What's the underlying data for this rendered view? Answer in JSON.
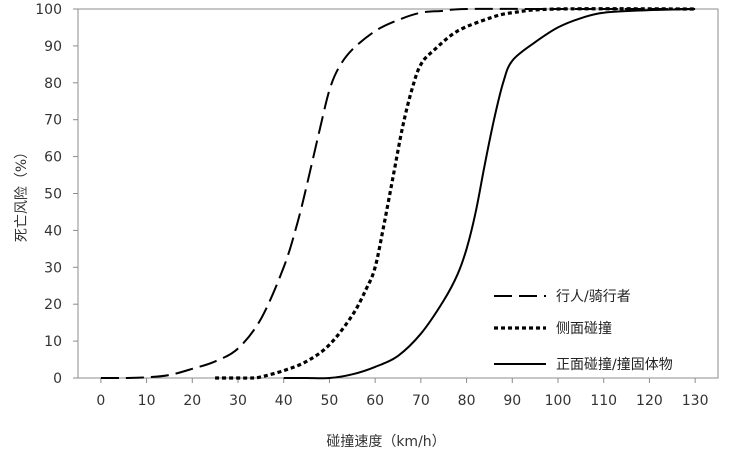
{
  "chart_data": {
    "type": "line",
    "xlabel": "碰撞速度（km/h）",
    "ylabel": "死亡风险（%）",
    "xlim": [
      -5,
      135
    ],
    "ylim": [
      0,
      100
    ],
    "x_ticks": [
      "0",
      "10",
      "20",
      "30",
      "40",
      "50",
      "60",
      "70",
      "80",
      "90",
      "100",
      "110",
      "120",
      "130"
    ],
    "y_ticks": [
      "0",
      "10",
      "20",
      "30",
      "40",
      "50",
      "60",
      "70",
      "80",
      "90",
      "100"
    ],
    "grid": false,
    "legend_position": "lower-right",
    "series": [
      {
        "name": "行人/骑行者",
        "style": "dashed",
        "color": "#000000",
        "points": [
          [
            0,
            0
          ],
          [
            5,
            0
          ],
          [
            10,
            0.2
          ],
          [
            15,
            0.8
          ],
          [
            20,
            2.5
          ],
          [
            25,
            4.5
          ],
          [
            30,
            8
          ],
          [
            35,
            16
          ],
          [
            40,
            30
          ],
          [
            43,
            42
          ],
          [
            45,
            52
          ],
          [
            48,
            68
          ],
          [
            50,
            78
          ],
          [
            52,
            84
          ],
          [
            55,
            89
          ],
          [
            60,
            94
          ],
          [
            65,
            97
          ],
          [
            70,
            99
          ],
          [
            75,
            99.5
          ],
          [
            80,
            100
          ],
          [
            100,
            100
          ],
          [
            130,
            100
          ]
        ]
      },
      {
        "name": "侧面碰撞",
        "style": "dotted",
        "color": "#000000",
        "points": [
          [
            25,
            0
          ],
          [
            30,
            0
          ],
          [
            33,
            0
          ],
          [
            35,
            0.3
          ],
          [
            40,
            2
          ],
          [
            45,
            4.5
          ],
          [
            50,
            9
          ],
          [
            55,
            17
          ],
          [
            58,
            24
          ],
          [
            60,
            30
          ],
          [
            62,
            42
          ],
          [
            64,
            55
          ],
          [
            66,
            68
          ],
          [
            68,
            78
          ],
          [
            70,
            85
          ],
          [
            73,
            89
          ],
          [
            78,
            94
          ],
          [
            85,
            97.5
          ],
          [
            90,
            99
          ],
          [
            100,
            100
          ],
          [
            130,
            100
          ]
        ]
      },
      {
        "name": "正面碰撞/撞固体物",
        "style": "solid",
        "color": "#000000",
        "points": [
          [
            40,
            0
          ],
          [
            45,
            0
          ],
          [
            50,
            0
          ],
          [
            55,
            1
          ],
          [
            60,
            3
          ],
          [
            65,
            6
          ],
          [
            70,
            12
          ],
          [
            75,
            21
          ],
          [
            78,
            28
          ],
          [
            80,
            35
          ],
          [
            82,
            45
          ],
          [
            84,
            58
          ],
          [
            86,
            70
          ],
          [
            88,
            80
          ],
          [
            90,
            86
          ],
          [
            95,
            91
          ],
          [
            100,
            95
          ],
          [
            105,
            97.5
          ],
          [
            110,
            99
          ],
          [
            120,
            99.7
          ],
          [
            130,
            100
          ]
        ]
      }
    ]
  }
}
